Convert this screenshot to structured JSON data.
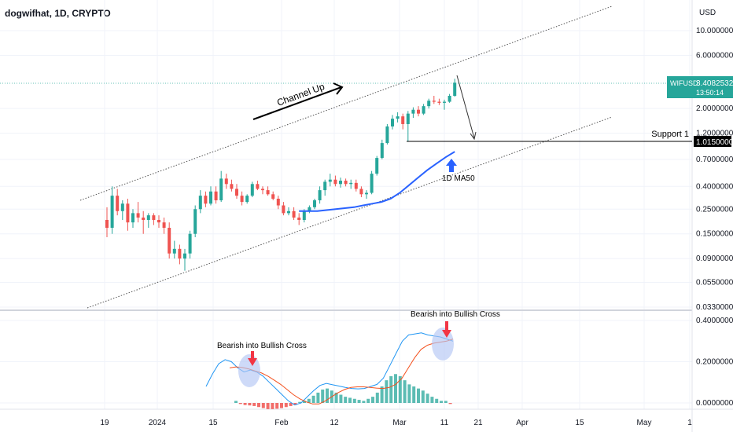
{
  "header": {
    "symbol_title": "dogwifhat, 1D, CRYPTO",
    "currency": "USD"
  },
  "price_scale": {
    "ticks": [
      "10.00000000",
      "6.00000000",
      "2.00000000",
      "1.20000000",
      "0.70000000",
      "0.40000000",
      "0.25000000",
      "0.15000000",
      "0.09000000",
      "0.05500000",
      "0.03300000"
    ],
    "current_label": "WIFUSD",
    "current_price": "3.40825328",
    "countdown": "13:50:14",
    "support_price": "1.01500000"
  },
  "oscillator_scale": {
    "ticks": [
      "0.40000000",
      "0.20000000",
      "0.00000000"
    ]
  },
  "time_axis": {
    "ticks": [
      "19",
      "2024",
      "15",
      "Feb",
      "12",
      "Mar",
      "11",
      "21",
      "Apr",
      "15",
      "May",
      "1"
    ]
  },
  "annotations": {
    "channel": "Channel Up",
    "support": "Support 1",
    "ma": "1D MA50",
    "cross_1": "Bearish into Bullish Cross",
    "cross_2": "Bearish into Bullish Cross"
  },
  "colors": {
    "up": "#26a69a",
    "down": "#ef5350",
    "ma50": "#2962ff",
    "macd": "#2196f3",
    "signal": "#f4511e",
    "current_price_bg": "#26a69a",
    "support_bg": "#000000",
    "circle_fill": "#b3c6f5",
    "arrow_red": "#f23645",
    "arrow_blue": "#2962ff"
  },
  "chart_data": [
    {
      "type": "candlestick",
      "scale": "log",
      "ylim": [
        0.033,
        10
      ],
      "ohlc": [
        [
          0.2,
          0.26,
          0.14,
          0.17
        ],
        [
          0.17,
          0.4,
          0.15,
          0.33
        ],
        [
          0.33,
          0.38,
          0.22,
          0.24
        ],
        [
          0.24,
          0.3,
          0.2,
          0.28
        ],
        [
          0.28,
          0.31,
          0.16,
          0.19
        ],
        [
          0.19,
          0.25,
          0.17,
          0.23
        ],
        [
          0.23,
          0.29,
          0.19,
          0.21
        ],
        [
          0.21,
          0.24,
          0.15,
          0.2
        ],
        [
          0.2,
          0.23,
          0.17,
          0.22
        ],
        [
          0.22,
          0.23,
          0.18,
          0.2
        ],
        [
          0.2,
          0.22,
          0.17,
          0.19
        ],
        [
          0.19,
          0.21,
          0.15,
          0.17
        ],
        [
          0.17,
          0.19,
          0.09,
          0.1
        ],
        [
          0.1,
          0.13,
          0.09,
          0.11
        ],
        [
          0.11,
          0.12,
          0.08,
          0.09
        ],
        [
          0.09,
          0.11,
          0.07,
          0.1
        ],
        [
          0.1,
          0.16,
          0.09,
          0.15
        ],
        [
          0.15,
          0.27,
          0.14,
          0.25
        ],
        [
          0.25,
          0.37,
          0.23,
          0.33
        ],
        [
          0.33,
          0.36,
          0.26,
          0.28
        ],
        [
          0.28,
          0.4,
          0.27,
          0.36
        ],
        [
          0.36,
          0.4,
          0.28,
          0.3
        ],
        [
          0.3,
          0.55,
          0.29,
          0.47
        ],
        [
          0.47,
          0.52,
          0.38,
          0.42
        ],
        [
          0.42,
          0.46,
          0.36,
          0.38
        ],
        [
          0.38,
          0.42,
          0.31,
          0.33
        ],
        [
          0.33,
          0.36,
          0.27,
          0.29
        ],
        [
          0.29,
          0.34,
          0.28,
          0.33
        ],
        [
          0.33,
          0.44,
          0.32,
          0.42
        ],
        [
          0.42,
          0.45,
          0.37,
          0.38
        ],
        [
          0.38,
          0.4,
          0.34,
          0.37
        ],
        [
          0.37,
          0.4,
          0.33,
          0.34
        ],
        [
          0.34,
          0.36,
          0.3,
          0.31
        ],
        [
          0.31,
          0.33,
          0.25,
          0.27
        ],
        [
          0.27,
          0.29,
          0.22,
          0.23
        ],
        [
          0.23,
          0.26,
          0.22,
          0.24
        ],
        [
          0.24,
          0.26,
          0.2,
          0.21
        ],
        [
          0.21,
          0.23,
          0.18,
          0.2
        ],
        [
          0.2,
          0.25,
          0.19,
          0.24
        ],
        [
          0.24,
          0.27,
          0.23,
          0.26
        ],
        [
          0.26,
          0.31,
          0.25,
          0.3
        ],
        [
          0.3,
          0.4,
          0.28,
          0.37
        ],
        [
          0.37,
          0.46,
          0.33,
          0.44
        ],
        [
          0.44,
          0.52,
          0.4,
          0.46
        ],
        [
          0.46,
          0.5,
          0.4,
          0.42
        ],
        [
          0.42,
          0.48,
          0.39,
          0.45
        ],
        [
          0.45,
          0.47,
          0.4,
          0.42
        ],
        [
          0.42,
          0.46,
          0.38,
          0.43
        ],
        [
          0.43,
          0.46,
          0.36,
          0.38
        ],
        [
          0.38,
          0.4,
          0.32,
          0.34
        ],
        [
          0.34,
          0.37,
          0.31,
          0.35
        ],
        [
          0.35,
          0.55,
          0.34,
          0.52
        ],
        [
          0.52,
          0.75,
          0.5,
          0.72
        ],
        [
          0.72,
          1.05,
          0.7,
          0.98
        ],
        [
          0.98,
          1.45,
          0.95,
          1.38
        ],
        [
          1.38,
          1.75,
          1.3,
          1.62
        ],
        [
          1.62,
          1.85,
          1.5,
          1.7
        ],
        [
          1.7,
          1.8,
          1.3,
          1.45
        ],
        [
          1.45,
          1.9,
          1.02,
          1.8
        ],
        [
          1.8,
          2.05,
          1.65,
          1.95
        ],
        [
          1.95,
          2.1,
          1.7,
          1.8
        ],
        [
          1.8,
          2.2,
          1.75,
          2.1
        ],
        [
          2.1,
          2.45,
          2.0,
          2.35
        ],
        [
          2.35,
          2.6,
          2.2,
          2.3
        ],
        [
          2.3,
          2.45,
          2.15,
          2.25
        ],
        [
          2.25,
          2.4,
          1.95,
          2.3
        ],
        [
          2.3,
          2.7,
          2.25,
          2.6
        ],
        [
          2.6,
          3.7,
          2.55,
          3.41
        ]
      ],
      "ma50": [
        0.24,
        0.24,
        0.24,
        0.245,
        0.25,
        0.255,
        0.26,
        0.27,
        0.28,
        0.29,
        0.31,
        0.35,
        0.41,
        0.48,
        0.56,
        0.64,
        0.73,
        0.82
      ]
    },
    {
      "type": "macd",
      "ylim": [
        -0.02,
        0.42
      ],
      "histogram": [
        0.01,
        -0.005,
        -0.01,
        -0.012,
        -0.015,
        -0.02,
        -0.025,
        -0.03,
        -0.03,
        -0.028,
        -0.025,
        -0.02,
        -0.015,
        -0.01,
        0.005,
        0.01,
        0.02,
        0.035,
        0.05,
        0.065,
        0.07,
        0.06,
        0.05,
        0.04,
        0.03,
        0.025,
        0.02,
        0.015,
        0.01,
        0.02,
        0.03,
        0.05,
        0.08,
        0.11,
        0.13,
        0.14,
        0.13,
        0.11,
        0.09,
        0.08,
        0.07,
        0.06,
        0.045,
        0.03,
        0.02,
        0.01,
        0.01,
        -0.005
      ],
      "macd": [
        0.08,
        0.14,
        0.19,
        0.21,
        0.2,
        0.17,
        0.15,
        0.16,
        0.15,
        0.13,
        0.1,
        0.07,
        0.04,
        0.01,
        -0.01,
        0.0,
        0.03,
        0.06,
        0.085,
        0.095,
        0.088,
        0.082,
        0.075,
        0.07,
        0.068,
        0.07,
        0.08,
        0.09,
        0.12,
        0.18,
        0.24,
        0.3,
        0.33,
        0.335,
        0.34,
        0.33,
        0.325,
        0.32,
        0.31,
        0.3
      ],
      "signal": [
        0.17,
        0.175,
        0.172,
        0.165,
        0.155,
        0.145,
        0.13,
        0.11,
        0.09,
        0.065,
        0.04,
        0.02,
        0.005,
        -0.005,
        -0.005,
        0.01,
        0.03,
        0.05,
        0.065,
        0.075,
        0.078,
        0.078,
        0.075,
        0.072,
        0.07,
        0.075,
        0.09,
        0.12,
        0.17,
        0.22,
        0.26,
        0.28,
        0.29,
        0.295,
        0.3,
        0.31
      ]
    }
  ]
}
